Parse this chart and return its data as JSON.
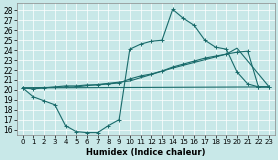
{
  "xlabel": "Humidex (Indice chaleur)",
  "bg_color": "#c8e8e8",
  "line_color": "#1a6b6b",
  "xlim": [
    -0.5,
    23.5
  ],
  "ylim": [
    15.5,
    28.7
  ],
  "yticks": [
    16,
    17,
    18,
    19,
    20,
    21,
    22,
    23,
    24,
    25,
    26,
    27,
    28
  ],
  "xticks": [
    0,
    1,
    2,
    3,
    4,
    5,
    6,
    7,
    8,
    9,
    10,
    11,
    12,
    13,
    14,
    15,
    16,
    17,
    18,
    19,
    20,
    21,
    22,
    23
  ],
  "xtick_labels": [
    "0",
    "1",
    "2",
    "3",
    "4",
    "5",
    "6",
    "7",
    "8",
    "9",
    "10",
    "11",
    "12",
    "13",
    "14",
    "15",
    "16",
    "17",
    "18",
    "19",
    "20",
    "21",
    "22",
    "23"
  ],
  "curve1_x": [
    0,
    1,
    2,
    3,
    4,
    5,
    6,
    7,
    8,
    9,
    10,
    11,
    12,
    13,
    14,
    15,
    16,
    17,
    18,
    19,
    20,
    21,
    22,
    23
  ],
  "curve1_y": [
    20.2,
    19.3,
    18.9,
    18.5,
    16.4,
    15.8,
    15.7,
    15.7,
    16.4,
    17.0,
    24.1,
    24.6,
    24.9,
    25.0,
    28.1,
    27.2,
    26.5,
    25.0,
    24.3,
    24.1,
    21.8,
    20.6,
    20.3,
    20.3
  ],
  "curve2_x": [
    0,
    1,
    2,
    3,
    4,
    5,
    6,
    7,
    8,
    9,
    10,
    11,
    12,
    13,
    14,
    15,
    16,
    17,
    18,
    19,
    20,
    21,
    22,
    23
  ],
  "curve2_y": [
    20.2,
    20.1,
    20.2,
    20.3,
    20.4,
    20.4,
    20.5,
    20.5,
    20.6,
    20.7,
    21.1,
    21.4,
    21.6,
    21.9,
    22.3,
    22.6,
    22.9,
    23.2,
    23.4,
    23.6,
    23.8,
    23.9,
    20.3,
    20.3
  ],
  "curve3_x": [
    0,
    23
  ],
  "curve3_y": [
    20.2,
    20.3
  ],
  "curve4_x": [
    0,
    5,
    10,
    14,
    19,
    20,
    23
  ],
  "curve4_y": [
    20.2,
    20.3,
    20.9,
    22.2,
    23.6,
    24.2,
    20.3
  ]
}
